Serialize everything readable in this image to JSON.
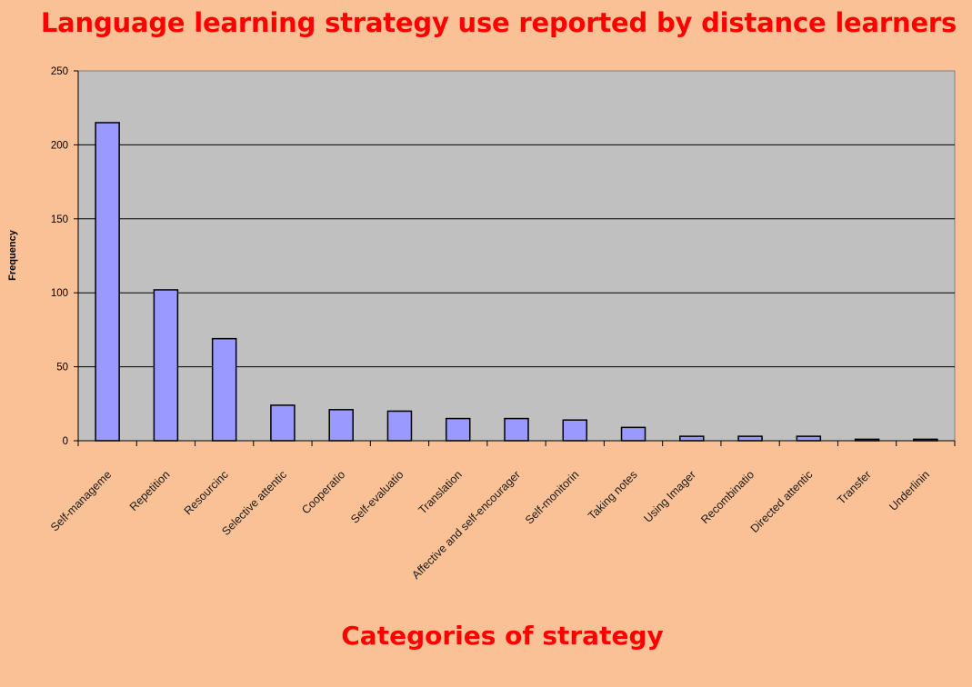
{
  "chart_data": {
    "type": "bar",
    "title": "Language learning strategy use reported by distance learners",
    "xlabel": "Categories of strategy",
    "ylabel": "Frequency",
    "ylim": [
      0,
      250
    ],
    "yticks": [
      0,
      50,
      100,
      150,
      200,
      250
    ],
    "grid": true,
    "legend": "none",
    "categories": [
      "Self-management",
      "Repetition",
      "Resourcing",
      "Selective attention",
      "Cooperation",
      "Self-evaluation",
      "Translation",
      "Affective and self-encouragement",
      "Self-monitoring",
      "Taking notes",
      "Using Imagery",
      "Recombination",
      "Directed attention",
      "Transfer",
      "Underlining"
    ],
    "category_display": [
      "Self-manageme",
      "Repetition",
      "Resourcinc",
      "Selective attentic",
      "Cooperatio",
      "Self-evaluatio",
      "Translation",
      "Affective and self-encourager",
      "Self-monitorin",
      "Taking notes",
      "Using Imager",
      "Recombinatio",
      "Directed attentic",
      "Transfer",
      "Underlinin"
    ],
    "values": [
      215,
      102,
      69,
      24,
      21,
      20,
      15,
      15,
      14,
      9,
      3,
      3,
      3,
      1,
      1
    ],
    "colors": {
      "bar": "#9999ff",
      "plot_area": "#c0c0c0",
      "background": "#f9c195",
      "title": "#ff0000"
    }
  }
}
